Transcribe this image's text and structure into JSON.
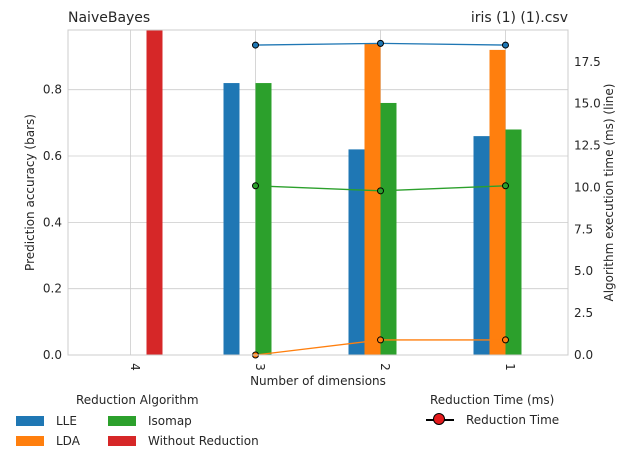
{
  "chart_data": {
    "type": "bar",
    "title_left": "NaiveBayes",
    "title_right": "iris (1) (1).csv",
    "xlabel": "Number of dimensions",
    "ylabel": "Prediction accuracy (bars)",
    "y2label": "Algorithm execution time (ms) (line)",
    "categories": [
      "4",
      "3",
      "2",
      "1"
    ],
    "ylim": [
      0,
      0.98
    ],
    "yticks": [
      "0.0",
      "0.2",
      "0.4",
      "0.6",
      "0.8"
    ],
    "ytick_values": [
      0.0,
      0.2,
      0.4,
      0.6,
      0.8
    ],
    "y2lim": [
      0,
      19.4
    ],
    "y2ticks": [
      "0.0",
      "2.5",
      "5.0",
      "7.5",
      "10.0",
      "12.5",
      "15.0",
      "17.5"
    ],
    "y2tick_values": [
      0,
      2.5,
      5.0,
      7.5,
      10.0,
      12.5,
      15.0,
      17.5
    ],
    "bar_series": [
      {
        "name": "LLE",
        "color": "#1f77b4",
        "values": [
          null,
          0.82,
          0.62,
          0.66
        ]
      },
      {
        "name": "LDA",
        "color": "#ff7f0e",
        "values": [
          null,
          null,
          0.94,
          0.92
        ]
      },
      {
        "name": "Isomap",
        "color": "#2ca02c",
        "values": [
          null,
          0.82,
          0.76,
          0.68
        ]
      },
      {
        "name": "Without Reduction",
        "color": "#d62728",
        "values": [
          0.98,
          null,
          null,
          null
        ]
      }
    ],
    "line_series": [
      {
        "name": "LLE",
        "color": "#1f77b4",
        "values": [
          null,
          18.5,
          18.6,
          18.5
        ]
      },
      {
        "name": "LDA",
        "color": "#ff7f0e",
        "values": [
          null,
          0.0,
          0.9,
          0.9
        ]
      },
      {
        "name": "Isomap",
        "color": "#2ca02c",
        "values": [
          null,
          10.1,
          9.8,
          10.1
        ]
      }
    ],
    "grid": true
  },
  "legend": {
    "reduction_title": "Reduction Algorithm",
    "items": [
      {
        "label": "LLE",
        "color": "#1f77b4"
      },
      {
        "label": "LDA",
        "color": "#ff7f0e"
      },
      {
        "label": "Isomap",
        "color": "#2ca02c"
      },
      {
        "label": "Without Reduction",
        "color": "#d62728"
      }
    ],
    "time_title": "Reduction Time (ms)",
    "time_label": "Reduction Time",
    "time_marker_color": "#e41a1c"
  }
}
